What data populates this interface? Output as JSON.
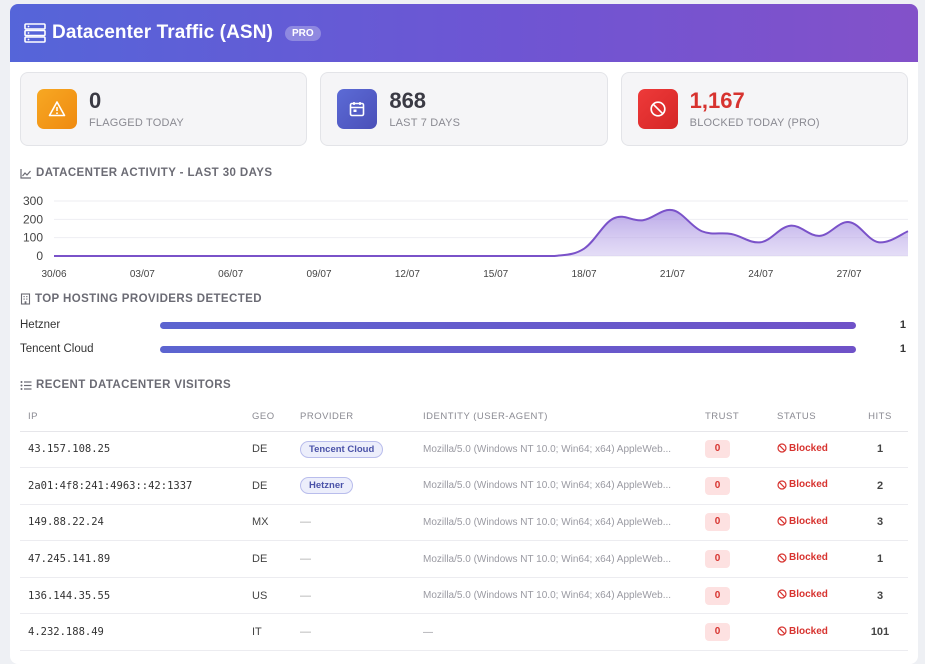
{
  "header": {
    "title": "Datacenter Traffic (ASN)",
    "badge": "PRO"
  },
  "stats": [
    {
      "value": "0",
      "label": "FLAGGED TODAY",
      "icon": "warning-icon",
      "color": "#f39a1b"
    },
    {
      "value": "868",
      "label": "LAST 7 DAYS",
      "icon": "calendar-icon",
      "color": "#535cc8"
    },
    {
      "value": "1,167",
      "label": "BLOCKED TODAY (PRO)",
      "icon": "block-icon",
      "color": "#e03030"
    }
  ],
  "activity": {
    "title": "DATACENTER ACTIVITY - LAST 30 DAYS",
    "chart_data": {
      "type": "area",
      "yticks": [
        "300",
        "200",
        "100",
        "0"
      ],
      "ylim": [
        0,
        300
      ],
      "xticks": [
        "30/06",
        "03/07",
        "06/07",
        "09/07",
        "12/07",
        "15/07",
        "18/07",
        "21/07",
        "24/07",
        "27/07"
      ],
      "x": [
        "30/06",
        "01/07",
        "02/07",
        "03/07",
        "04/07",
        "05/07",
        "06/07",
        "07/07",
        "08/07",
        "09/07",
        "10/07",
        "11/07",
        "12/07",
        "13/07",
        "14/07",
        "15/07",
        "16/07",
        "17/07",
        "18/07",
        "19/07",
        "20/07",
        "21/07",
        "22/07",
        "23/07",
        "24/07",
        "25/07",
        "26/07",
        "27/07",
        "28/07",
        "29/07"
      ],
      "values": [
        0,
        0,
        0,
        0,
        0,
        0,
        0,
        0,
        0,
        0,
        0,
        0,
        0,
        0,
        0,
        0,
        0,
        0,
        40,
        205,
        195,
        250,
        135,
        120,
        75,
        165,
        110,
        185,
        75,
        135
      ]
    }
  },
  "providers": {
    "title": "TOP HOSTING PROVIDERS DETECTED",
    "items": [
      {
        "name": "Hetzner",
        "count": "1",
        "fraction": 1.0
      },
      {
        "name": "Tencent Cloud",
        "count": "1",
        "fraction": 1.0
      }
    ]
  },
  "visitors": {
    "title": "RECENT DATACENTER VISITORS",
    "columns": [
      "IP",
      "GEO",
      "PROVIDER",
      "IDENTITY (USER-AGENT)",
      "TRUST",
      "STATUS",
      "HITS"
    ],
    "rows": [
      {
        "ip": "43.157.108.25",
        "geo": "DE",
        "provider": "Tencent Cloud",
        "ua": "Mozilla/5.0 (Windows NT 10.0; Win64; x64) AppleWeb...",
        "trust": "0",
        "status": "Blocked",
        "hits": "1"
      },
      {
        "ip": "2a01:4f8:241:4963::42:1337",
        "geo": "DE",
        "provider": "Hetzner",
        "ua": "Mozilla/5.0 (Windows NT 10.0; Win64; x64) AppleWeb...",
        "trust": "0",
        "status": "Blocked",
        "hits": "2"
      },
      {
        "ip": "149.88.22.24",
        "geo": "MX",
        "provider": "—",
        "ua": "Mozilla/5.0 (Windows NT 10.0; Win64; x64) AppleWeb...",
        "trust": "0",
        "status": "Blocked",
        "hits": "3"
      },
      {
        "ip": "47.245.141.89",
        "geo": "DE",
        "provider": "—",
        "ua": "Mozilla/5.0 (Windows NT 10.0; Win64; x64) AppleWeb...",
        "trust": "0",
        "status": "Blocked",
        "hits": "1"
      },
      {
        "ip": "136.144.35.55",
        "geo": "US",
        "provider": "—",
        "ua": "Mozilla/5.0 (Windows NT 10.0; Win64; x64) AppleWeb...",
        "trust": "0",
        "status": "Blocked",
        "hits": "3"
      },
      {
        "ip": "4.232.188.49",
        "geo": "IT",
        "provider": "—",
        "ua": "—",
        "trust": "0",
        "status": "Blocked",
        "hits": "101"
      }
    ]
  }
}
